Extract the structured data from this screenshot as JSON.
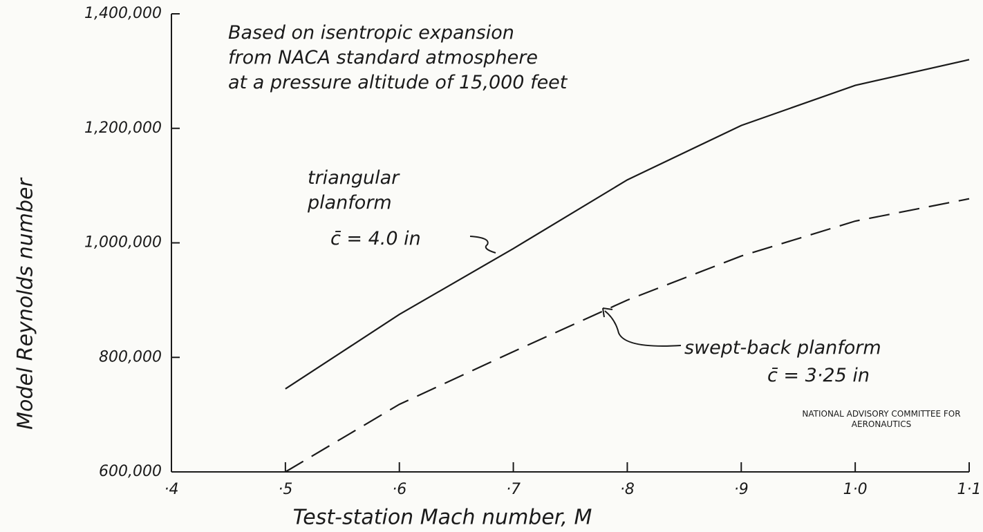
{
  "chart_data": {
    "type": "line",
    "title": [
      "Based on isentropic expansion",
      "from NACA standard atmosphere",
      "at a pressure altitude of 15,000 feet"
    ],
    "xlabel": "Test-station Mach number, M",
    "ylabel": "Model Reynolds number",
    "x": [
      0.5,
      0.6,
      0.7,
      0.8,
      0.9,
      1.0,
      1.1
    ],
    "series": [
      {
        "name": "triangular planform",
        "color": "#1a1a1a",
        "style": "solid",
        "note": "c̄ = 4.0 in",
        "values": [
          745000,
          875000,
          990000,
          1110000,
          1205000,
          1275000,
          1320000
        ]
      },
      {
        "name": "swept-back planform",
        "color": "#1a1a1a",
        "style": "dashed",
        "note": "c̄ = 3·25 in",
        "values": [
          600000,
          718000,
          810000,
          900000,
          977000,
          1038000,
          1077000
        ]
      }
    ],
    "xlim": [
      0.4,
      1.1
    ],
    "xticks": [
      {
        "value": 0.4,
        "label": "·4"
      },
      {
        "value": 0.5,
        "label": "·5"
      },
      {
        "value": 0.6,
        "label": "·6"
      },
      {
        "value": 0.7,
        "label": "·7"
      },
      {
        "value": 0.8,
        "label": "·8"
      },
      {
        "value": 0.9,
        "label": "·9"
      },
      {
        "value": 1.0,
        "label": "1·0"
      },
      {
        "value": 1.1,
        "label": "1·1"
      }
    ],
    "ylim": [
      600000,
      1400000
    ],
    "yticks": [
      {
        "value": 600000,
        "label": "600,000"
      },
      {
        "value": 800000,
        "label": "800,000"
      },
      {
        "value": 1000000,
        "label": "1,000,000"
      },
      {
        "value": 1200000,
        "label": "1,200,000"
      },
      {
        "value": 1400000,
        "label": "1,400,000"
      }
    ],
    "source": "NATIONAL ADVISORY COMMITTEE FOR AERONAUTICS"
  }
}
